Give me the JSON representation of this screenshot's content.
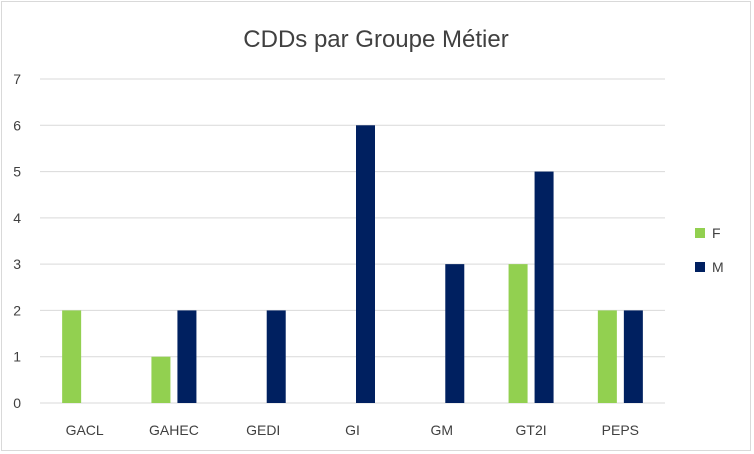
{
  "chart_data": {
    "type": "bar",
    "title": "CDDs par Groupe Métier",
    "xlabel": "",
    "ylabel": "",
    "categories": [
      "GACL",
      "GAHEC",
      "GEDI",
      "GI",
      "GM",
      "GT2I",
      "PEPS"
    ],
    "series": [
      {
        "name": "F",
        "values": [
          2,
          1,
          0,
          0,
          0,
          3,
          2
        ],
        "color": "#92d050"
      },
      {
        "name": "M",
        "values": [
          0,
          2,
          2,
          6,
          3,
          5,
          2
        ],
        "color": "#002060"
      }
    ],
    "ylim": [
      0,
      7
    ],
    "yticks": [
      "0",
      "1",
      "2",
      "3",
      "4",
      "5",
      "6",
      "7"
    ],
    "grid": true,
    "legend_position": "right"
  }
}
